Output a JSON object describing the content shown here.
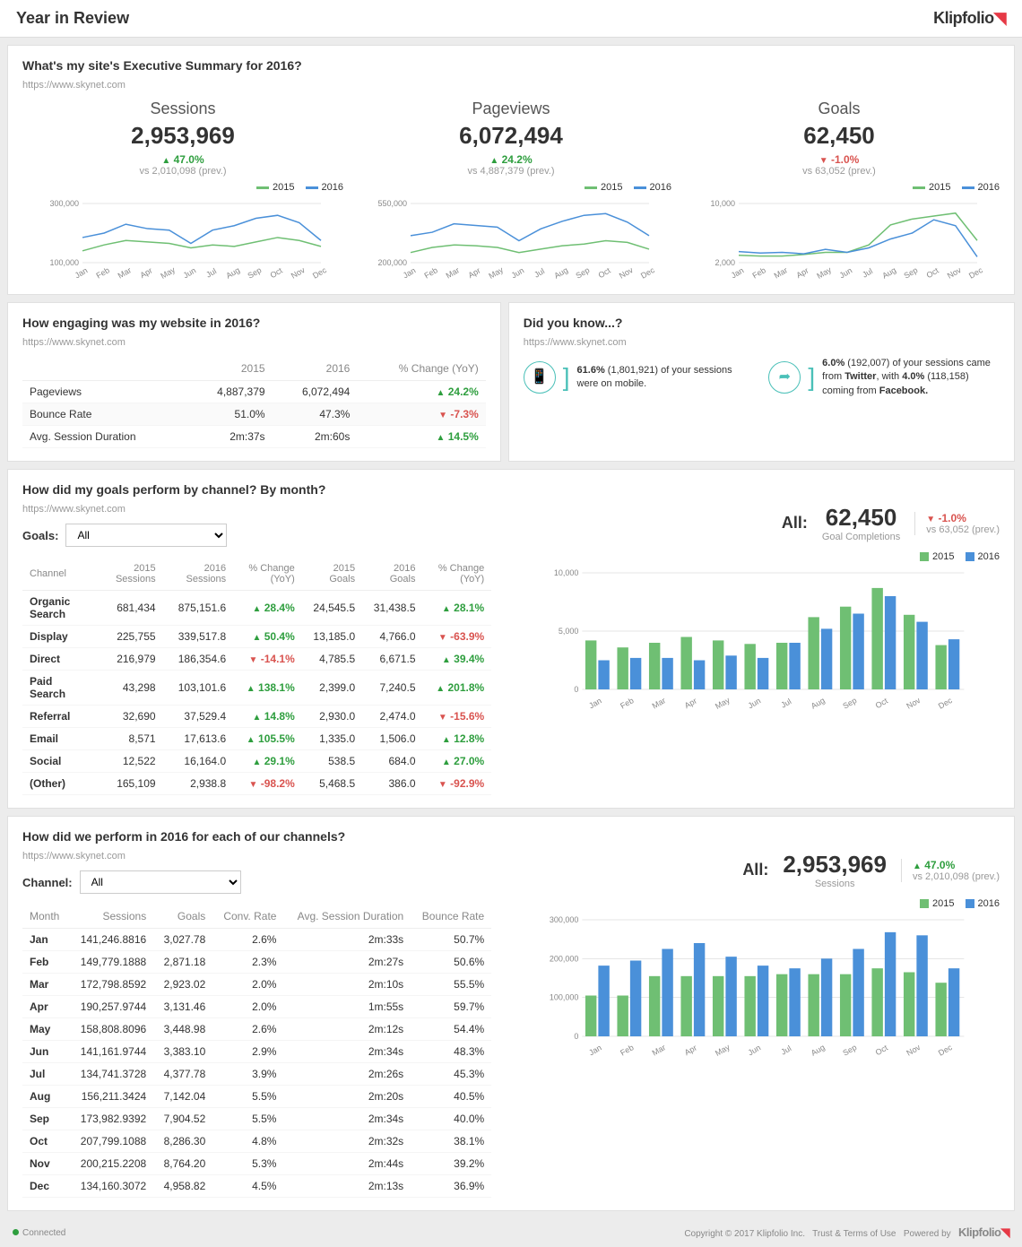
{
  "header": {
    "title": "Year in Review",
    "brand": "Klipfolio"
  },
  "colors": {
    "y2015": "#6fbf73",
    "y2016": "#4a90d9",
    "up": "#2e9e3e",
    "down": "#d9534f",
    "grid": "#cccccc",
    "bg": "#ffffff"
  },
  "months": [
    "Jan",
    "Feb",
    "Mar",
    "Apr",
    "May",
    "Jun",
    "Jul",
    "Aug",
    "Sep",
    "Oct",
    "Nov",
    "Dec"
  ],
  "summary": {
    "title": "What's my site's Executive Summary for 2016?",
    "url": "https://www.skynet.com",
    "legend": [
      "2015",
      "2016"
    ],
    "metrics": [
      {
        "label": "Sessions",
        "value": "2,953,969",
        "delta": "47.0%",
        "dir": "up",
        "prev": "vs 2,010,098 (prev.)",
        "chart": {
          "type": "line",
          "ylim": [
            100000,
            300000
          ],
          "yticks": [
            100000,
            300000
          ],
          "yticklabels": [
            "100,000",
            "300,000"
          ],
          "y2015": [
            140000,
            160000,
            175000,
            170000,
            165000,
            150000,
            160000,
            155000,
            170000,
            185000,
            175000,
            155000
          ],
          "y2016": [
            185000,
            200000,
            230000,
            215000,
            210000,
            165000,
            210000,
            225000,
            250000,
            260000,
            235000,
            175000
          ]
        }
      },
      {
        "label": "Pageviews",
        "value": "6,072,494",
        "delta": "24.2%",
        "dir": "up",
        "prev": "vs 4,887,379 (prev.)",
        "chart": {
          "type": "line",
          "ylim": [
            200000,
            550000
          ],
          "yticks": [
            200000,
            550000
          ],
          "yticklabels": [
            "200,000",
            "550,000"
          ],
          "y2015": [
            260000,
            290000,
            305000,
            300000,
            290000,
            260000,
            280000,
            300000,
            310000,
            330000,
            320000,
            280000
          ],
          "y2016": [
            360000,
            380000,
            430000,
            420000,
            410000,
            330000,
            400000,
            445000,
            480000,
            490000,
            440000,
            360000
          ]
        }
      },
      {
        "label": "Goals",
        "value": "62,450",
        "delta": "-1.0%",
        "dir": "down",
        "prev": "vs 63,052 (prev.)",
        "chart": {
          "type": "line",
          "ylim": [
            2000,
            10000
          ],
          "yticks": [
            2000,
            10000
          ],
          "yticklabels": [
            "2,000",
            "10,000"
          ],
          "y2015": [
            3000,
            2900,
            2900,
            3100,
            3400,
            3400,
            4400,
            7100,
            7900,
            8300,
            8700,
            5000
          ],
          "y2016": [
            3500,
            3300,
            3400,
            3200,
            3800,
            3400,
            4000,
            5200,
            6000,
            7800,
            7000,
            2800
          ]
        }
      }
    ]
  },
  "engaging": {
    "title": "How engaging was my website in 2016?",
    "url": "https://www.skynet.com",
    "cols": [
      "",
      "2015",
      "2016",
      "% Change (YoY)"
    ],
    "rows": [
      {
        "label": "Pageviews",
        "y2015": "4,887,379",
        "y2016": "6,072,494",
        "change": "24.2%",
        "dir": "up"
      },
      {
        "label": "Bounce Rate",
        "y2015": "51.0%",
        "y2016": "47.3%",
        "change": "-7.3%",
        "dir": "down"
      },
      {
        "label": "Avg. Session Duration",
        "y2015": "2m:37s",
        "y2016": "2m:60s",
        "change": "14.5%",
        "dir": "up"
      }
    ]
  },
  "didknow": {
    "title": "Did you know...?",
    "url": "https://www.skynet.com",
    "mobile": {
      "pct": "61.6%",
      "count": "(1,801,921)",
      "text": " of your sessions were on mobile."
    },
    "social": {
      "pct": "6.0%",
      "count": "(192,007)",
      "text1": " of your sessions came from ",
      "src1": "Twitter",
      "text2": ", with ",
      "pct2": "4.0%",
      "count2": "(118,158)",
      "text3": " coming from ",
      "src2": "Facebook."
    }
  },
  "goals": {
    "title": "How did my goals perform by channel? By month?",
    "url": "https://www.skynet.com",
    "selector_label": "Goals:",
    "selector_value": "All",
    "summary": {
      "lab": "All:",
      "value": "62,450",
      "sub": "Goal Completions",
      "delta": "-1.0%",
      "dir": "down",
      "prev": "vs 63,052 (prev.)"
    },
    "cols": [
      "Channel",
      "2015 Sessions",
      "2016 Sessions",
      "% Change (YoY)",
      "2015 Goals",
      "2016 Goals",
      "% Change (YoY)"
    ],
    "rows": [
      {
        "c": "Organic Search",
        "s15": "681,434",
        "s16": "875,151.6",
        "sc": "28.4%",
        "scd": "up",
        "g15": "24,545.5",
        "g16": "31,438.5",
        "gc": "28.1%",
        "gcd": "up"
      },
      {
        "c": "Display",
        "s15": "225,755",
        "s16": "339,517.8",
        "sc": "50.4%",
        "scd": "up",
        "g15": "13,185.0",
        "g16": "4,766.0",
        "gc": "-63.9%",
        "gcd": "down"
      },
      {
        "c": "Direct",
        "s15": "216,979",
        "s16": "186,354.6",
        "sc": "-14.1%",
        "scd": "down",
        "g15": "4,785.5",
        "g16": "6,671.5",
        "gc": "39.4%",
        "gcd": "up"
      },
      {
        "c": "Paid Search",
        "s15": "43,298",
        "s16": "103,101.6",
        "sc": "138.1%",
        "scd": "up",
        "g15": "2,399.0",
        "g16": "7,240.5",
        "gc": "201.8%",
        "gcd": "up"
      },
      {
        "c": "Referral",
        "s15": "32,690",
        "s16": "37,529.4",
        "sc": "14.8%",
        "scd": "up",
        "g15": "2,930.0",
        "g16": "2,474.0",
        "gc": "-15.6%",
        "gcd": "down"
      },
      {
        "c": "Email",
        "s15": "8,571",
        "s16": "17,613.6",
        "sc": "105.5%",
        "scd": "up",
        "g15": "1,335.0",
        "g16": "1,506.0",
        "gc": "12.8%",
        "gcd": "up"
      },
      {
        "c": "Social",
        "s15": "12,522",
        "s16": "16,164.0",
        "sc": "29.1%",
        "scd": "up",
        "g15": "538.5",
        "g16": "684.0",
        "gc": "27.0%",
        "gcd": "up"
      },
      {
        "c": "(Other)",
        "s15": "165,109",
        "s16": "2,938.8",
        "sc": "-98.2%",
        "scd": "down",
        "g15": "5,468.5",
        "g16": "386.0",
        "gc": "-92.9%",
        "gcd": "down"
      }
    ],
    "chart": {
      "type": "bar",
      "ylim": [
        0,
        10000
      ],
      "yticks": [
        0,
        5000,
        10000
      ],
      "yticklabels": [
        "0",
        "5,000",
        "10,000"
      ],
      "y2015": [
        4200,
        3600,
        4000,
        4500,
        4200,
        3900,
        4000,
        6200,
        7100,
        8700,
        6400,
        3800
      ],
      "y2016": [
        2500,
        2700,
        2700,
        2500,
        2900,
        2700,
        4000,
        5200,
        6500,
        8000,
        5800,
        4300
      ]
    }
  },
  "channels": {
    "title": "How did we perform in 2016 for each of our channels?",
    "url": "https://www.skynet.com",
    "selector_label": "Channel:",
    "selector_value": "All",
    "summary": {
      "lab": "All:",
      "value": "2,953,969",
      "sub": "Sessions",
      "delta": "47.0%",
      "dir": "up",
      "prev": "vs 2,010,098 (prev.)"
    },
    "cols": [
      "Month",
      "Sessions",
      "Goals",
      "Conv. Rate",
      "Avg. Session Duration",
      "Bounce Rate"
    ],
    "rows": [
      {
        "m": "Jan",
        "s": "141,246.8816",
        "g": "3,027.78",
        "cr": "2.6%",
        "asd": "2m:33s",
        "br": "50.7%"
      },
      {
        "m": "Feb",
        "s": "149,779.1888",
        "g": "2,871.18",
        "cr": "2.3%",
        "asd": "2m:27s",
        "br": "50.6%"
      },
      {
        "m": "Mar",
        "s": "172,798.8592",
        "g": "2,923.02",
        "cr": "2.0%",
        "asd": "2m:10s",
        "br": "55.5%"
      },
      {
        "m": "Apr",
        "s": "190,257.9744",
        "g": "3,131.46",
        "cr": "2.0%",
        "asd": "1m:55s",
        "br": "59.7%"
      },
      {
        "m": "May",
        "s": "158,808.8096",
        "g": "3,448.98",
        "cr": "2.6%",
        "asd": "2m:12s",
        "br": "54.4%"
      },
      {
        "m": "Jun",
        "s": "141,161.9744",
        "g": "3,383.10",
        "cr": "2.9%",
        "asd": "2m:34s",
        "br": "48.3%"
      },
      {
        "m": "Jul",
        "s": "134,741.3728",
        "g": "4,377.78",
        "cr": "3.9%",
        "asd": "2m:26s",
        "br": "45.3%"
      },
      {
        "m": "Aug",
        "s": "156,211.3424",
        "g": "7,142.04",
        "cr": "5.5%",
        "asd": "2m:20s",
        "br": "40.5%"
      },
      {
        "m": "Sep",
        "s": "173,982.9392",
        "g": "7,904.52",
        "cr": "5.5%",
        "asd": "2m:34s",
        "br": "40.0%"
      },
      {
        "m": "Oct",
        "s": "207,799.1088",
        "g": "8,286.30",
        "cr": "4.8%",
        "asd": "2m:32s",
        "br": "38.1%"
      },
      {
        "m": "Nov",
        "s": "200,215.2208",
        "g": "8,764.20",
        "cr": "5.3%",
        "asd": "2m:44s",
        "br": "39.2%"
      },
      {
        "m": "Dec",
        "s": "134,160.3072",
        "g": "4,958.82",
        "cr": "4.5%",
        "asd": "2m:13s",
        "br": "36.9%"
      }
    ],
    "chart": {
      "type": "bar",
      "ylim": [
        0,
        300000
      ],
      "yticks": [
        0,
        100000,
        200000,
        300000
      ],
      "yticklabels": [
        "0",
        "100,000",
        "200,000",
        "300,000"
      ],
      "y2015": [
        105000,
        105000,
        155000,
        155000,
        155000,
        155000,
        160000,
        160000,
        160000,
        175000,
        165000,
        138000
      ],
      "y2016": [
        182000,
        195000,
        225000,
        240000,
        205000,
        182000,
        175000,
        200000,
        225000,
        268000,
        260000,
        175000
      ]
    }
  },
  "footer": {
    "status": "Connected",
    "copyright": "Copyright © 2017 Klipfolio Inc.",
    "links": [
      "Trust & Terms of Use"
    ],
    "powered": "Powered by"
  }
}
